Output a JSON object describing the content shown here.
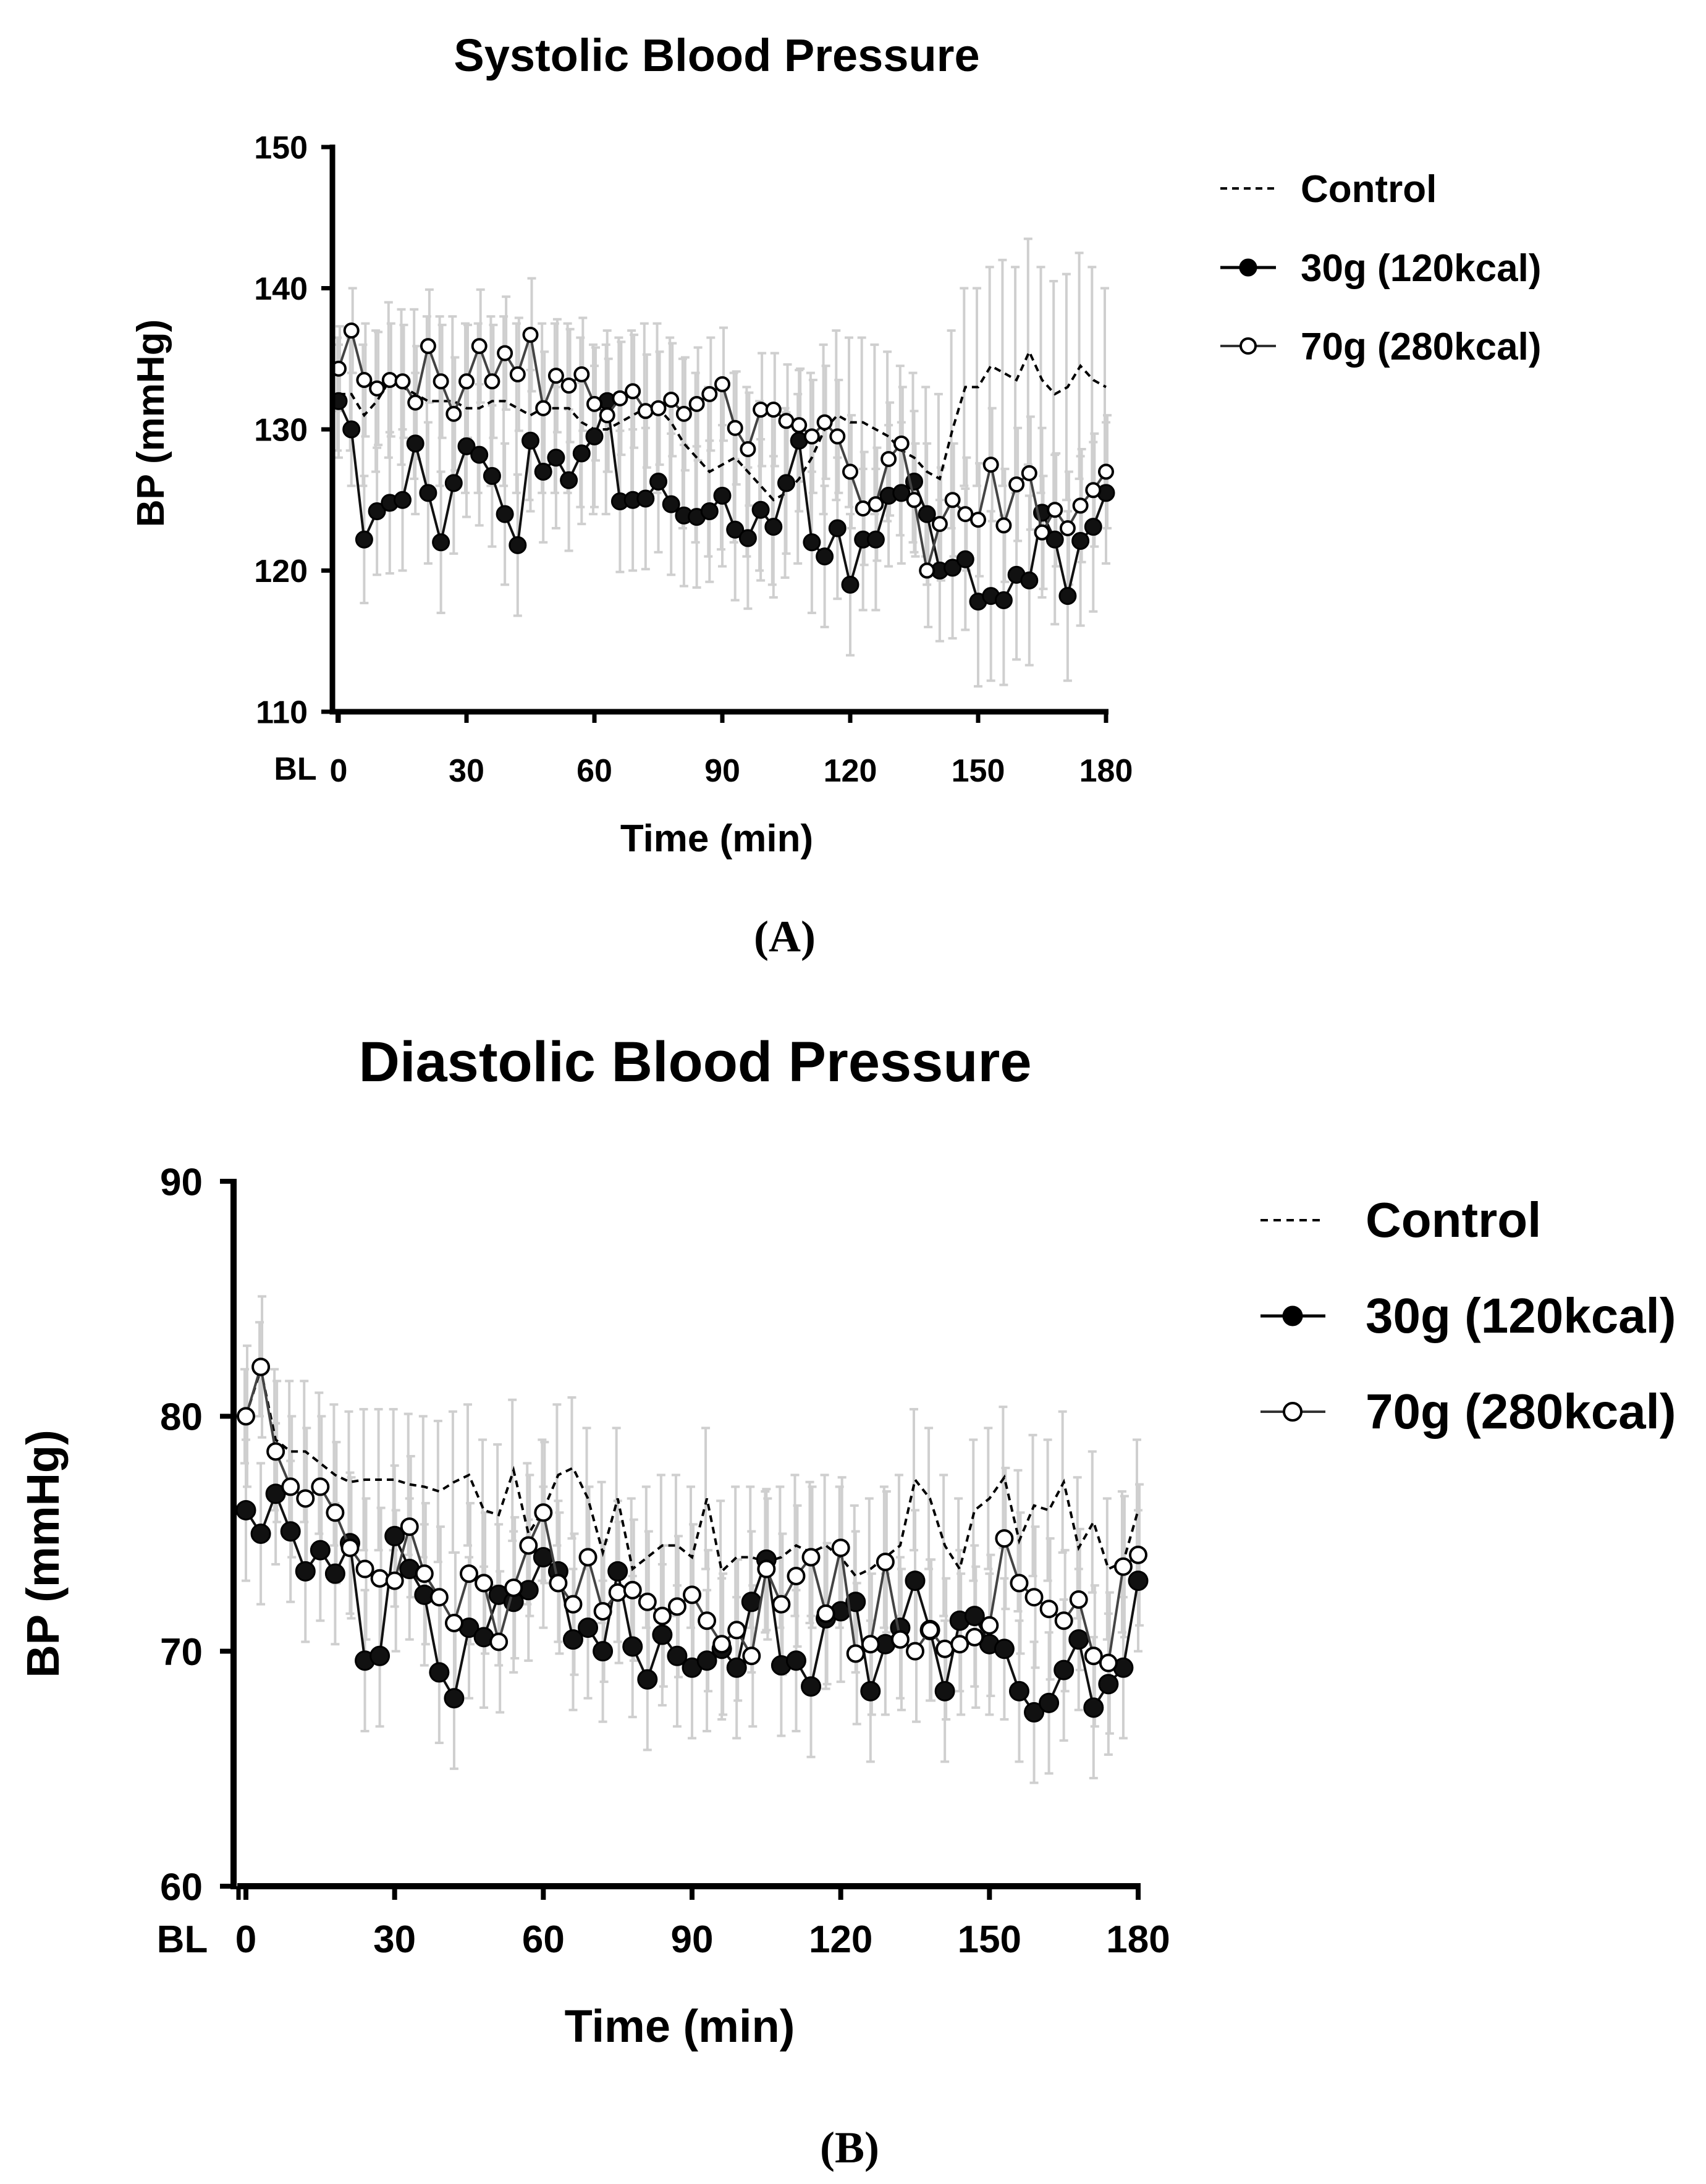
{
  "chart_data": [
    {
      "type": "line",
      "panel_label": "(A)",
      "title": "Systolic Blood Pressure",
      "xlabel": "Time (min)",
      "ylabel": "BP (mmHg)",
      "ylim": [
        110,
        150
      ],
      "yticks": [
        "110",
        "120",
        "130",
        "140",
        "150"
      ],
      "xticks": [
        "0",
        "30",
        "60",
        "90",
        "120",
        "150",
        "180"
      ],
      "bl_label": "BL",
      "x": [
        0,
        3,
        6,
        9,
        12,
        15,
        18,
        21,
        24,
        27,
        30,
        33,
        36,
        39,
        42,
        45,
        48,
        51,
        54,
        57,
        60,
        63,
        66,
        69,
        72,
        75,
        78,
        81,
        84,
        87,
        90,
        93,
        96,
        99,
        102,
        105,
        108,
        111,
        114,
        117,
        120,
        123,
        126,
        129,
        132,
        135,
        138,
        141,
        144,
        147,
        150,
        153,
        156,
        159,
        162,
        165,
        168,
        171,
        174,
        177,
        180
      ],
      "series": [
        {
          "name": "Control",
          "style": "dashed",
          "values": [
            132.5,
            132.5,
            131,
            132,
            133.5,
            133,
            132.5,
            132,
            132,
            132,
            131.5,
            131.5,
            132,
            132,
            131.5,
            131,
            131.5,
            131.5,
            131.5,
            130.5,
            130,
            130,
            130.5,
            131,
            131.5,
            131.5,
            130.5,
            129,
            128,
            127,
            127.5,
            128,
            127,
            126,
            125,
            125.5,
            126.5,
            128,
            130,
            131,
            130.5,
            130.5,
            130,
            129.5,
            128.5,
            128,
            127,
            126.5,
            130,
            133,
            133,
            134.5,
            134,
            133.5,
            135.5,
            133.5,
            132.5,
            133,
            134.5,
            133.5,
            133
          ],
          "errors": [
            4,
            4,
            5,
            5,
            5.5,
            5.5,
            6,
            6,
            6,
            6,
            6,
            6,
            6,
            6,
            6,
            6,
            6,
            6,
            6,
            6,
            6,
            6,
            6,
            6,
            6,
            6,
            6,
            6,
            6,
            6,
            6,
            6,
            6,
            6,
            6,
            6,
            6,
            6,
            6,
            6,
            6,
            6,
            6,
            6,
            6,
            6,
            6,
            6,
            7,
            7,
            7,
            7,
            8,
            8,
            8,
            8,
            8,
            8,
            8,
            8,
            7
          ]
        },
        {
          "name": "30g (120kcal)",
          "style": "filled",
          "values": [
            132,
            130,
            122.2,
            124.2,
            124.8,
            125,
            129,
            125.5,
            122,
            126.2,
            128.8,
            128.2,
            126.7,
            124,
            121.8,
            129.2,
            127,
            128,
            126.4,
            128.3,
            129.5,
            132,
            124.9,
            125,
            125.1,
            126.3,
            124.7,
            123.9,
            123.8,
            124.2,
            125.3,
            122.9,
            122.3,
            124.3,
            123.1,
            126.2,
            129.2,
            122,
            121,
            123,
            119,
            122.2,
            122.2,
            125.3,
            125.5,
            126.3,
            124,
            120,
            120.2,
            120.8,
            117.8,
            118.2,
            117.9,
            119.7,
            119.3,
            124.1,
            122.2,
            118.2,
            122.1,
            123.1,
            125.5
          ],
          "errors": [
            4,
            4,
            4.5,
            4.5,
            5,
            5,
            5,
            5,
            5,
            5,
            5,
            5,
            5,
            5,
            5,
            5,
            5,
            5,
            5,
            5,
            5,
            5,
            5,
            5,
            5,
            5,
            5,
            5,
            5,
            5,
            5,
            5,
            5,
            5,
            5,
            5,
            5,
            5,
            5,
            5,
            5,
            5,
            5,
            5,
            5,
            5,
            5,
            5,
            5,
            5,
            6,
            6,
            6,
            6,
            6,
            6,
            6,
            6,
            6,
            6,
            5
          ]
        },
        {
          "name": "70g (280kcal)",
          "style": "open",
          "values": [
            134.3,
            137,
            133.5,
            132.9,
            133.5,
            133.4,
            131.9,
            135.9,
            133.4,
            131.1,
            133.4,
            135.9,
            133.4,
            135.4,
            133.9,
            136.7,
            131.5,
            133.8,
            133.1,
            133.9,
            131.8,
            131,
            132.2,
            132.7,
            131.3,
            131.5,
            132.1,
            131.1,
            131.8,
            132.5,
            133.2,
            130.1,
            128.6,
            131.4,
            131.4,
            130.6,
            130.3,
            129.5,
            130.5,
            129.5,
            127,
            124.4,
            124.7,
            127.9,
            129,
            125,
            120,
            123.3,
            125,
            124,
            123.6,
            127.5,
            123.2,
            126.1,
            126.9,
            122.7,
            124.3,
            123,
            124.6,
            125.7,
            127
          ],
          "errors": [
            3,
            3,
            4,
            4,
            4,
            4,
            4,
            4,
            4,
            4,
            4,
            4,
            4,
            4,
            4,
            4,
            4,
            4,
            4,
            4,
            4,
            4,
            4,
            4,
            4,
            4,
            4,
            4,
            4,
            4,
            4,
            4,
            4,
            4,
            4,
            4,
            4,
            4,
            4,
            4,
            4,
            4,
            4,
            4,
            4,
            4,
            4,
            4,
            4,
            4,
            4,
            4,
            4,
            4,
            4,
            4,
            4,
            4,
            4,
            4,
            4
          ]
        }
      ]
    },
    {
      "type": "line",
      "panel_label": "(B)",
      "title": "Diastolic Blood Pressure",
      "xlabel": "Time (min)",
      "ylabel": "BP (mmHg)",
      "ylim": [
        60,
        90
      ],
      "yticks": [
        "60",
        "70",
        "80",
        "90"
      ],
      "xticks": [
        "0",
        "30",
        "60",
        "90",
        "120",
        "150",
        "180"
      ],
      "bl_label": "BL",
      "x": [
        0,
        3,
        6,
        9,
        12,
        15,
        18,
        21,
        24,
        27,
        30,
        33,
        36,
        39,
        42,
        45,
        48,
        51,
        54,
        57,
        60,
        63,
        66,
        69,
        72,
        75,
        78,
        81,
        84,
        87,
        90,
        93,
        96,
        99,
        102,
        105,
        108,
        111,
        114,
        117,
        120,
        123,
        126,
        129,
        132,
        135,
        138,
        141,
        144,
        147,
        150,
        153,
        156,
        159,
        162,
        165,
        168,
        171,
        174,
        177,
        180
      ],
      "series": [
        {
          "name": "Control",
          "style": "dashed",
          "values": [
            80,
            82,
            79,
            78.5,
            78.5,
            78,
            77.5,
            77.2,
            77.3,
            77.3,
            77.3,
            77.1,
            77,
            76.8,
            77.2,
            77.5,
            76,
            75.8,
            77.7,
            75,
            76,
            77.5,
            77.8,
            76.5,
            74.2,
            76.5,
            73.5,
            74,
            74.5,
            74.5,
            74,
            76.5,
            73.4,
            74,
            74,
            73.8,
            74,
            74.5,
            74.2,
            74.5,
            74,
            73.2,
            73.5,
            74,
            74.5,
            77.3,
            76.5,
            74.5,
            73.5,
            76,
            76.5,
            77.4,
            74.7,
            76.2,
            76,
            77.2,
            74.4,
            75.5,
            73.5,
            73.8,
            76
          ],
          "errors": [
            2,
            2,
            3,
            3,
            3,
            3,
            3,
            3,
            3,
            3,
            3,
            3,
            3,
            3,
            3,
            3,
            3,
            3,
            3,
            3,
            3,
            3,
            3,
            3,
            3,
            3,
            3,
            3,
            3,
            3,
            3,
            3,
            3,
            3,
            3,
            3,
            3,
            3,
            3,
            3,
            3,
            3,
            3,
            3,
            3,
            3,
            3,
            3,
            3,
            3,
            3,
            3,
            3,
            3,
            3,
            3,
            3,
            3,
            3,
            3,
            3
          ]
        },
        {
          "name": "30g (120kcal)",
          "style": "filled",
          "values": [
            76,
            75,
            76.7,
            75.1,
            73.4,
            74.3,
            73.3,
            74.6,
            69.6,
            69.8,
            74.9,
            73.5,
            72.4,
            69.1,
            68,
            71,
            70.6,
            72.4,
            72.1,
            72.6,
            74,
            73.4,
            70.5,
            71,
            70,
            73.4,
            70.2,
            68.8,
            70.7,
            69.8,
            69.3,
            69.6,
            70.1,
            69.3,
            72.1,
            73.9,
            69.4,
            69.6,
            68.5,
            71.4,
            71.7,
            72.1,
            68.3,
            70.3,
            71,
            73,
            70.9,
            68.3,
            71.3,
            71.5,
            70.3,
            70.1,
            68.3,
            67.4,
            67.8,
            69.2,
            70.5,
            67.6,
            68.6,
            69.3,
            73
          ],
          "errors": [
            3,
            3,
            3,
            3,
            3,
            3,
            3,
            3,
            3,
            3,
            3,
            3,
            3,
            3,
            3,
            3,
            3,
            3,
            3,
            3,
            3,
            3,
            3,
            3,
            3,
            3,
            3,
            3,
            3,
            3,
            3,
            3,
            3,
            3,
            3,
            3,
            3,
            3,
            3,
            3,
            3,
            3,
            3,
            3,
            3,
            3,
            3,
            3,
            3,
            3,
            3,
            3,
            3,
            3,
            3,
            3,
            3,
            3,
            3,
            3,
            3
          ]
        },
        {
          "name": "70g (280kcal)",
          "style": "open",
          "values": [
            80,
            82.1,
            78.5,
            77,
            76.5,
            77,
            75.9,
            74.4,
            73.5,
            73.1,
            73,
            75.3,
            73.3,
            72.3,
            71.2,
            73.3,
            72.9,
            70.4,
            72.7,
            74.5,
            75.9,
            72.9,
            72,
            74,
            71.7,
            72.5,
            72.6,
            72.1,
            71.5,
            71.9,
            72.4,
            71.3,
            70.3,
            70.9,
            69.8,
            73.5,
            72,
            73.2,
            74,
            71.6,
            74.4,
            69.9,
            70.3,
            73.8,
            70.5,
            70,
            70.9,
            70.1,
            70.3,
            70.6,
            71.1,
            74.8,
            72.9,
            72.3,
            71.8,
            71.3,
            72.2,
            69.8,
            69.5,
            73.6,
            74.1
          ],
          "errors": [
            3,
            3,
            3,
            3,
            3,
            3,
            3,
            3,
            3,
            3,
            3,
            3,
            3,
            3,
            3,
            3,
            3,
            3,
            3,
            3,
            3,
            3,
            3,
            3,
            3,
            3,
            3,
            3,
            3,
            3,
            3,
            3,
            3,
            3,
            3,
            3,
            3,
            3,
            3,
            3,
            3,
            3,
            3,
            3,
            3,
            3,
            3,
            3,
            3,
            3,
            3,
            3,
            3,
            3,
            3,
            3,
            3,
            3,
            3,
            3,
            3
          ]
        }
      ]
    }
  ]
}
